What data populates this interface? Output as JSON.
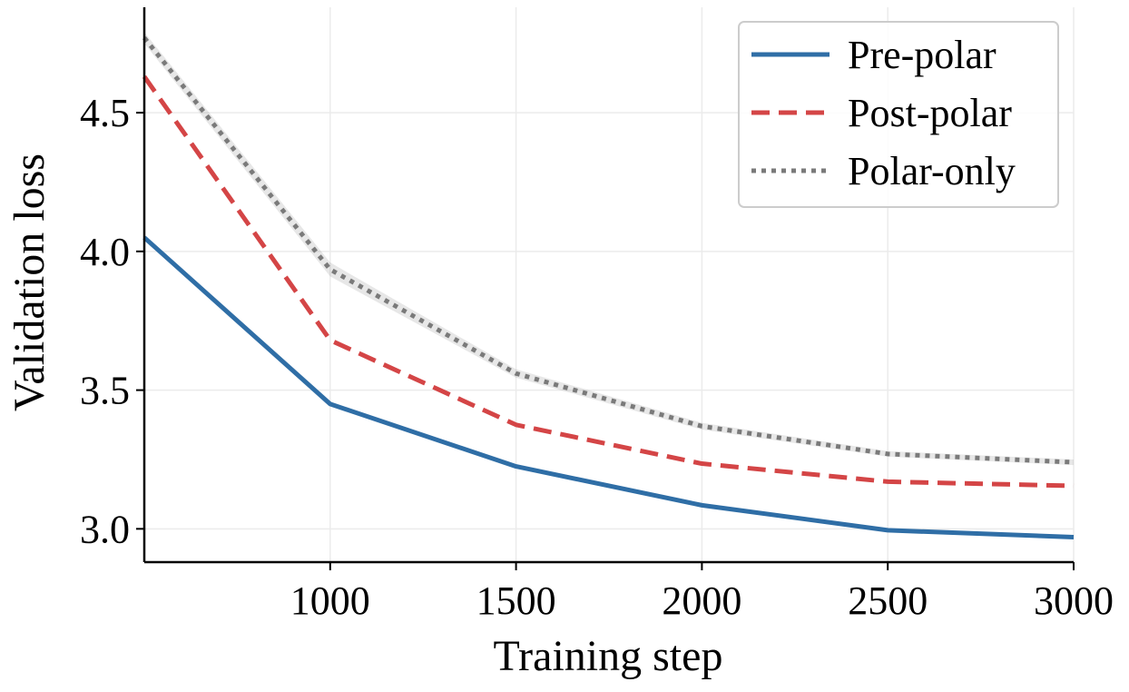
{
  "chart_data": {
    "type": "line",
    "xlabel": "Training step",
    "ylabel": "Validation loss",
    "x": [
      500,
      1000,
      1500,
      2000,
      2500,
      3000
    ],
    "xlim": [
      500,
      3000
    ],
    "ylim": [
      2.88,
      4.88
    ],
    "xticks": [
      1000,
      1500,
      2000,
      2500,
      3000
    ],
    "yticks": [
      3.0,
      3.5,
      4.0,
      4.5
    ],
    "xtick_labels": [
      "1000",
      "1500",
      "2000",
      "2500",
      "3000"
    ],
    "ytick_labels": [
      "3.0",
      "3.5",
      "4.0",
      "4.5"
    ],
    "grid": true,
    "legend_position": "top-right",
    "series": [
      {
        "name": "Pre-polar",
        "values": [
          4.05,
          3.45,
          3.225,
          3.085,
          2.995,
          2.97
        ],
        "color": "#2f6ea6",
        "style": "solid"
      },
      {
        "name": "Post-polar",
        "values": [
          4.63,
          3.68,
          3.375,
          3.235,
          3.17,
          3.155
        ],
        "color": "#d44546",
        "style": "dashed"
      },
      {
        "name": "Polar-only",
        "values": [
          4.77,
          3.935,
          3.56,
          3.37,
          3.27,
          3.24
        ],
        "band": [
          0.02,
          0.025,
          0.015,
          0.012,
          0.01,
          0.01
        ],
        "color": "#7a7a7a",
        "style": "dotted"
      }
    ]
  }
}
